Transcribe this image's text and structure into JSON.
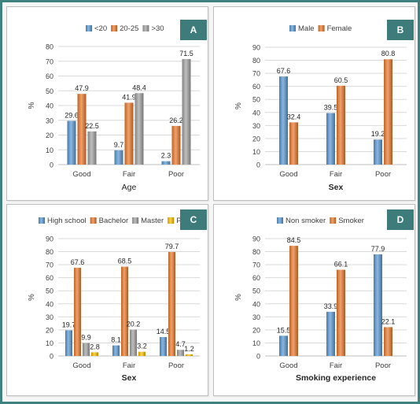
{
  "chart_data": [
    {
      "id": "A",
      "type": "bar",
      "panel_label": "A",
      "categories": [
        "Good",
        "Fair",
        "Poor"
      ],
      "series": [
        {
          "name": "<20",
          "values": [
            29.6,
            9.7,
            2.3
          ],
          "color": "#5b9bd5"
        },
        {
          "name": "20-25",
          "values": [
            47.9,
            41.9,
            26.2
          ],
          "color": "#ed7d31"
        },
        {
          "name": ">30",
          "values": [
            22.5,
            48.4,
            71.5
          ],
          "color": "#a5a5a5"
        }
      ],
      "xlabel": "Age",
      "ylabel": "%",
      "ylim": [
        0,
        80
      ],
      "yticks": [
        0,
        10,
        20,
        30,
        40,
        50,
        60,
        70,
        80
      ],
      "legend_position": "top",
      "grid": true
    },
    {
      "id": "B",
      "type": "bar",
      "panel_label": "B",
      "categories": [
        "Good",
        "Fair",
        "Poor"
      ],
      "series": [
        {
          "name": "Male",
          "values": [
            67.6,
            39.5,
            19.2
          ],
          "color": "#5b9bd5"
        },
        {
          "name": "Female",
          "values": [
            32.4,
            60.5,
            80.8
          ],
          "color": "#ed7d31"
        }
      ],
      "xlabel": "Sex",
      "ylabel": "%",
      "ylim": [
        0,
        90
      ],
      "yticks": [
        0,
        10,
        20,
        30,
        40,
        50,
        60,
        70,
        80,
        90
      ],
      "legend_position": "top",
      "grid": true
    },
    {
      "id": "C",
      "type": "bar",
      "panel_label": "C",
      "categories": [
        "Good",
        "Fair",
        "Poor"
      ],
      "series": [
        {
          "name": "High school",
          "values": [
            19.7,
            8.1,
            14.5
          ],
          "color": "#5b9bd5"
        },
        {
          "name": "Bachelor",
          "values": [
            67.6,
            68.5,
            79.7
          ],
          "color": "#ed7d31"
        },
        {
          "name": "Master",
          "values": [
            9.9,
            20.2,
            4.7
          ],
          "color": "#a5a5a5"
        },
        {
          "name": "PhD",
          "values": [
            2.8,
            3.2,
            1.2
          ],
          "color": "#ffc000"
        }
      ],
      "xlabel": "Sex",
      "ylabel": "%",
      "ylim": [
        0,
        90
      ],
      "yticks": [
        0,
        10,
        20,
        30,
        40,
        50,
        60,
        70,
        80,
        90
      ],
      "legend_position": "top",
      "grid": true
    },
    {
      "id": "D",
      "type": "bar",
      "panel_label": "D",
      "categories": [
        "Good",
        "Fair",
        "Poor"
      ],
      "series": [
        {
          "name": "Non smoker",
          "values": [
            15.5,
            33.9,
            77.9
          ],
          "color": "#5b9bd5"
        },
        {
          "name": "Smoker",
          "values": [
            84.5,
            66.1,
            22.1
          ],
          "color": "#ed7d31"
        }
      ],
      "xlabel": "Smoking experience",
      "ylabel": "%",
      "ylim": [
        0,
        90
      ],
      "yticks": [
        0,
        10,
        20,
        30,
        40,
        50,
        60,
        70,
        80,
        90
      ],
      "legend_position": "top",
      "grid": true
    }
  ]
}
